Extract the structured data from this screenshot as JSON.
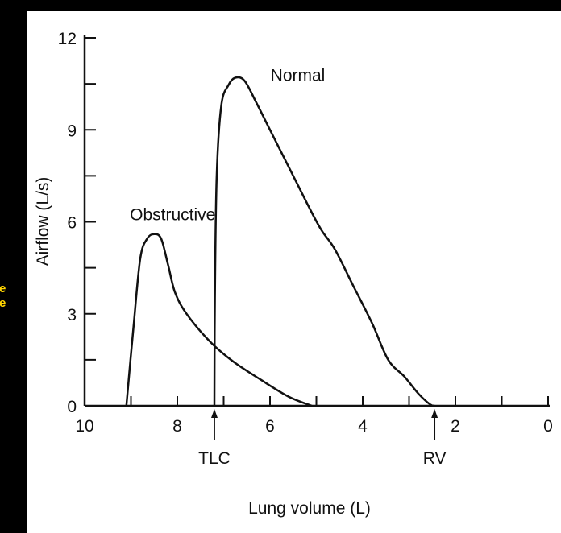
{
  "chart_data": {
    "type": "line",
    "title": "",
    "xlabel": "Lung volume (L)",
    "ylabel": "Airflow (L/s)",
    "xlim": [
      10,
      0
    ],
    "ylim": [
      0,
      12
    ],
    "x_ticks": [
      10,
      8,
      6,
      4,
      2,
      0
    ],
    "y_ticks": [
      0,
      3,
      6,
      9,
      12
    ],
    "series": [
      {
        "name": "Normal",
        "x": [
          7.2,
          7.19,
          7.15,
          7.05,
          6.9,
          6.75,
          6.55,
          6.3,
          6.0,
          5.6,
          5.2,
          4.9,
          4.6,
          4.2,
          3.8,
          3.45,
          3.1,
          2.8,
          2.55,
          2.45
        ],
        "y": [
          0,
          3.5,
          7.5,
          9.8,
          10.45,
          10.7,
          10.6,
          9.9,
          9.0,
          7.8,
          6.6,
          5.75,
          5.1,
          3.9,
          2.7,
          1.5,
          0.95,
          0.4,
          0.05,
          0
        ]
      },
      {
        "name": "Obstructive",
        "x": [
          9.1,
          8.95,
          8.8,
          8.65,
          8.5,
          8.35,
          8.2,
          8.05,
          7.8,
          7.3,
          6.8,
          6.2,
          5.6,
          5.1
        ],
        "y": [
          0,
          2.5,
          4.8,
          5.45,
          5.6,
          5.45,
          4.6,
          3.7,
          3.0,
          2.1,
          1.45,
          0.85,
          0.3,
          0
        ]
      }
    ],
    "annotations": [
      {
        "text": "Normal",
        "x": 5.4,
        "y": 10.6
      },
      {
        "text": "Obstructive",
        "x": 8.1,
        "y": 6.05
      },
      {
        "text": "TLC",
        "x": 7.2,
        "arrow": true
      },
      {
        "text": "RV",
        "x": 2.45,
        "arrow": true
      }
    ],
    "colors": {
      "background": "#ffffff",
      "line": "#111111",
      "axis": "#111111",
      "frame": "#000000",
      "side_text": "#ffd400"
    }
  },
  "side_text": [
    "e",
    "e"
  ]
}
